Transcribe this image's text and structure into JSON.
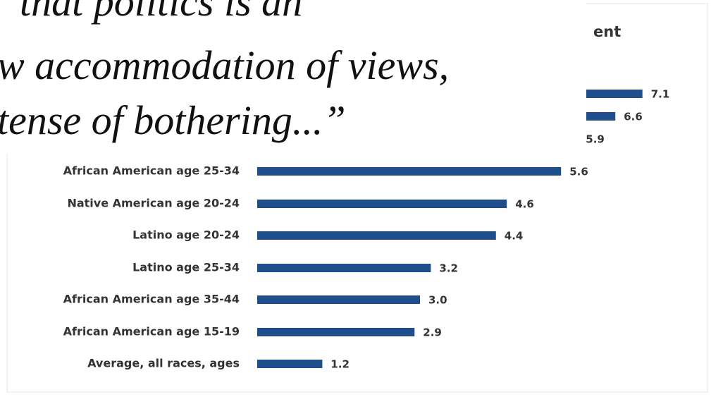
{
  "chart_data": {
    "type": "bar",
    "orientation": "horizontal",
    "title": "ent",
    "categories": [
      null,
      null,
      null,
      "African American age 25-34",
      "Native American age 20-24",
      "Latino age 20-24",
      "Latino age 25-34",
      "African American age 35-44",
      "African American age 15-19",
      "Average, all races, ages"
    ],
    "values": [
      7.1,
      6.6,
      5.9,
      5.6,
      4.6,
      4.4,
      3.2,
      3.0,
      2.9,
      1.2
    ],
    "value_labels": [
      "7.1",
      "6.6",
      "5.9",
      "5.6",
      "4.6",
      "4.4",
      "3.2",
      "3.0",
      "2.9",
      "1.2"
    ],
    "color": "#1f4e8c",
    "xlim": [
      0,
      8
    ],
    "annotations": [
      "that politics is an",
      "w accommodation of views,",
      "tense of bothering...”"
    ]
  }
}
